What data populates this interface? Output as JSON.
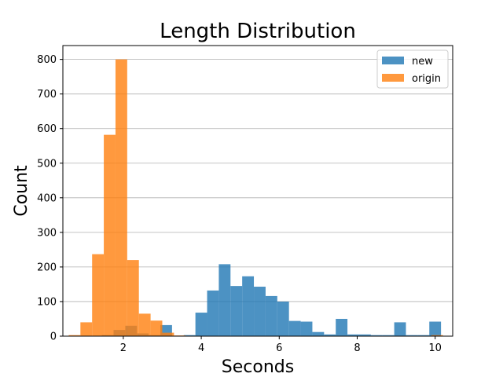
{
  "chart_data": {
    "type": "histogram",
    "title": "Length Distribution",
    "xlabel": "Seconds",
    "ylabel": "Count",
    "xlim": [
      0.45,
      10.45
    ],
    "ylim": [
      0,
      840
    ],
    "xticks": [
      2,
      4,
      6,
      8,
      10
    ],
    "yticks": [
      0,
      100,
      200,
      300,
      400,
      500,
      600,
      700,
      800
    ],
    "grid": "horizontal",
    "legend_position": "top-right",
    "series": [
      {
        "name": "new",
        "color": "#1f77b4",
        "opacity": 0.8,
        "bin_width": 0.3,
        "bins": [
          {
            "x0": 1.45,
            "value": 3
          },
          {
            "x0": 1.75,
            "value": 18
          },
          {
            "x0": 2.05,
            "value": 30
          },
          {
            "x0": 2.35,
            "value": 8
          },
          {
            "x0": 2.65,
            "value": 3
          },
          {
            "x0": 2.95,
            "value": 32
          },
          {
            "x0": 3.55,
            "value": 3
          },
          {
            "x0": 3.85,
            "value": 68
          },
          {
            "x0": 4.15,
            "value": 132
          },
          {
            "x0": 4.45,
            "value": 208
          },
          {
            "x0": 4.75,
            "value": 145
          },
          {
            "x0": 5.05,
            "value": 173
          },
          {
            "x0": 5.35,
            "value": 143
          },
          {
            "x0": 5.65,
            "value": 116
          },
          {
            "x0": 5.95,
            "value": 100
          },
          {
            "x0": 6.25,
            "value": 44
          },
          {
            "x0": 6.55,
            "value": 42
          },
          {
            "x0": 6.85,
            "value": 12
          },
          {
            "x0": 7.15,
            "value": 5
          },
          {
            "x0": 7.45,
            "value": 50
          },
          {
            "x0": 7.75,
            "value": 5
          },
          {
            "x0": 8.05,
            "value": 5
          },
          {
            "x0": 8.35,
            "value": 3
          },
          {
            "x0": 8.65,
            "value": 3
          },
          {
            "x0": 8.95,
            "value": 40
          },
          {
            "x0": 9.25,
            "value": 3
          },
          {
            "x0": 9.55,
            "value": 3
          },
          {
            "x0": 9.85,
            "value": 42
          }
        ]
      },
      {
        "name": "origin",
        "color": "#ff7f0e",
        "opacity": 0.8,
        "bin_width": 0.3,
        "bins": [
          {
            "x0": 0.6,
            "value": 3
          },
          {
            "x0": 0.9,
            "value": 40
          },
          {
            "x0": 1.2,
            "value": 237
          },
          {
            "x0": 1.5,
            "value": 582
          },
          {
            "x0": 1.8,
            "value": 800
          },
          {
            "x0": 2.1,
            "value": 220
          },
          {
            "x0": 2.4,
            "value": 65
          },
          {
            "x0": 2.7,
            "value": 45
          },
          {
            "x0": 3.0,
            "value": 10
          },
          {
            "x0": 3.3,
            "value": 2
          },
          {
            "x0": 9.9,
            "value": 3
          }
        ]
      }
    ]
  }
}
